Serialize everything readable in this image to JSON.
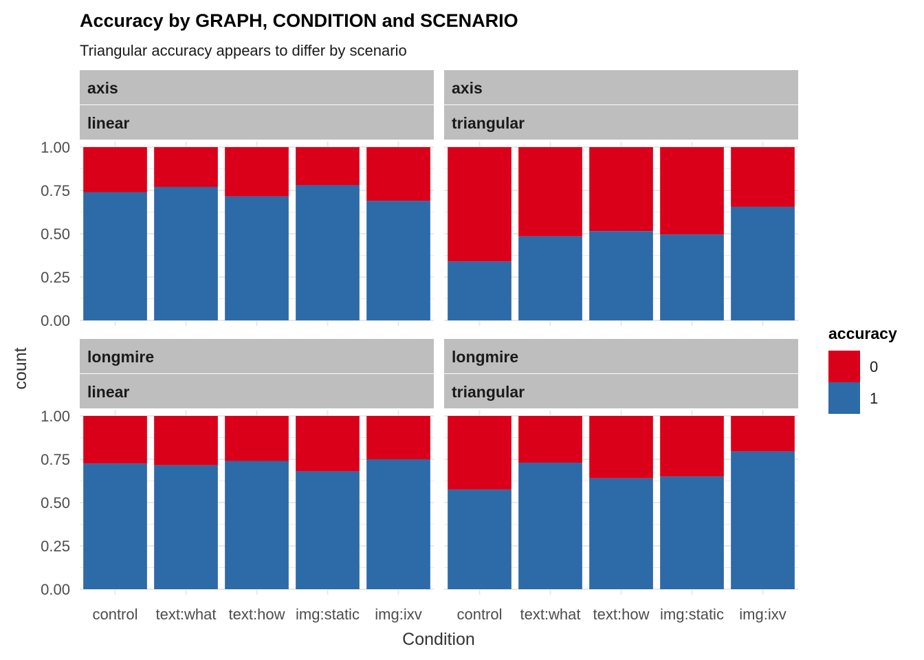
{
  "chart_data": {
    "type": "bar",
    "stacked": "fill",
    "title": "Accuracy by GRAPH, CONDITION and SCENARIO",
    "subtitle": "Triangular accuracy appears to differ by scenario",
    "xlabel": "Condition",
    "ylabel": "count",
    "ylim": [
      0,
      1
    ],
    "yticks": [
      "0.00",
      "0.25",
      "0.50",
      "0.75",
      "1.00"
    ],
    "categories": [
      "control",
      "text:what",
      "text:how",
      "img:static",
      "img:ixv"
    ],
    "legend": {
      "title": "accuracy",
      "placement": "right",
      "entries": [
        {
          "label": "0",
          "color": "#DA001A"
        },
        {
          "label": "1",
          "color": "#2D6AA8"
        }
      ]
    },
    "grid": true,
    "facets": [
      {
        "strip": [
          "axis",
          "linear"
        ],
        "series": [
          {
            "name": "1",
            "values": [
              0.74,
              0.77,
              0.715,
              0.78,
              0.69
            ]
          }
        ]
      },
      {
        "strip": [
          "axis",
          "triangular"
        ],
        "series": [
          {
            "name": "1",
            "values": [
              0.34,
              0.485,
              0.515,
              0.495,
              0.655
            ]
          }
        ]
      },
      {
        "strip": [
          "longmire",
          "linear"
        ],
        "series": [
          {
            "name": "1",
            "values": [
              0.725,
              0.715,
              0.74,
              0.68,
              0.75
            ]
          }
        ]
      },
      {
        "strip": [
          "longmire",
          "triangular"
        ],
        "series": [
          {
            "name": "1",
            "values": [
              0.575,
              0.73,
              0.64,
              0.65,
              0.795
            ]
          }
        ]
      }
    ]
  }
}
